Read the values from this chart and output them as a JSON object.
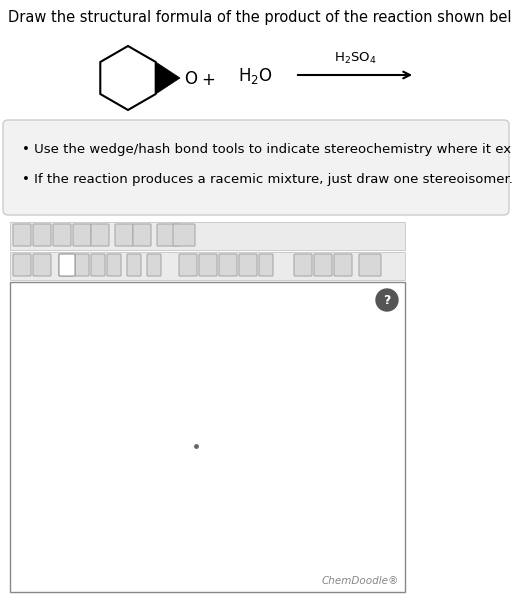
{
  "title": "Draw the structural formula of the product of the reaction shown below.",
  "title_fontsize": 10.5,
  "bullet1": "Use the wedge/hash bond tools to indicate stereochemistry where it exists.",
  "bullet2": "If the reaction produces a racemic mixture, just draw one stereoisomer.",
  "bullet_fontsize": 9.5,
  "bg_color": "#ffffff",
  "box_bg": "#f2f2f2",
  "box_edge": "#cccccc",
  "chemdoodle_label": "ChemDoodle®",
  "toolbar_bg": "#e0e0e0",
  "toolbar_edge": "#bbbbbb",
  "canvas_bg": "#ffffff",
  "canvas_edge": "#888888",
  "dot_color": "#666666",
  "qmark_color": "#555555"
}
